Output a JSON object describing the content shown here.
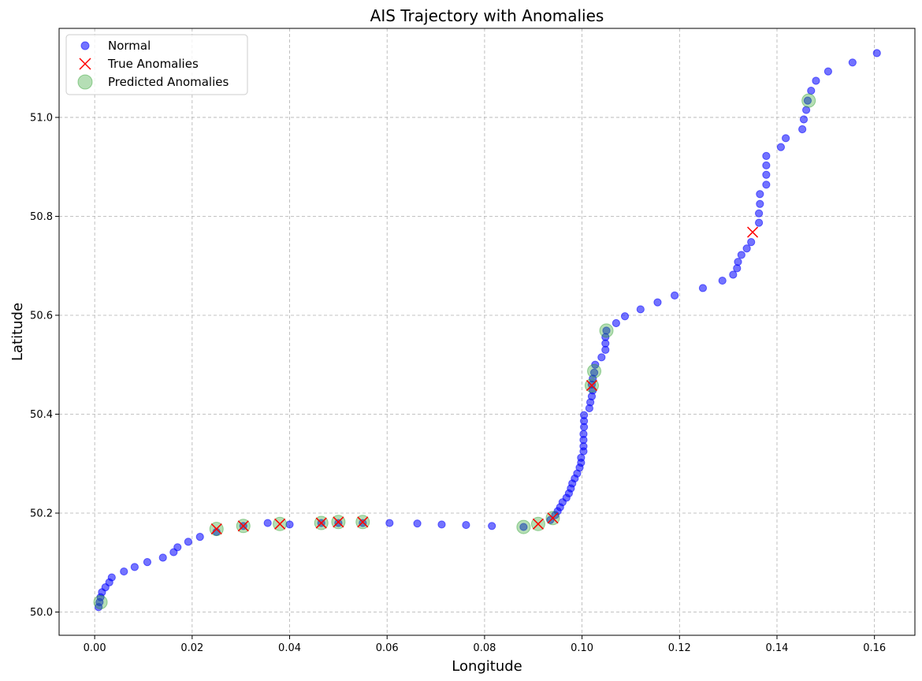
{
  "chart_data": {
    "type": "scatter",
    "title": "AIS Trajectory with Anomalies",
    "xlabel": "Longitude",
    "ylabel": "Latitude",
    "xlim": [
      -0.0073,
      0.1683
    ],
    "ylim": [
      49.953,
      51.18
    ],
    "xticks": [
      "0.00",
      "0.02",
      "0.04",
      "0.06",
      "0.08",
      "0.10",
      "0.12",
      "0.14",
      "0.16"
    ],
    "xtick_values": [
      0,
      0.02,
      0.04,
      0.06,
      0.08,
      0.1,
      0.12,
      0.14,
      0.16
    ],
    "yticks": [
      "50.0",
      "50.2",
      "50.4",
      "50.6",
      "50.8",
      "51.0"
    ],
    "ytick_values": [
      50.0,
      50.2,
      50.4,
      50.6,
      50.8,
      51.0
    ],
    "grid": true,
    "legend_position": "top-left",
    "series": [
      {
        "name": "Normal",
        "marker": "circle",
        "color": "#0000ff",
        "points": [
          [
            0.0008,
            50.01
          ],
          [
            0.001,
            50.02
          ],
          [
            0.0012,
            50.03
          ],
          [
            0.0015,
            50.04
          ],
          [
            0.0022,
            50.05
          ],
          [
            0.003,
            50.06
          ],
          [
            0.0035,
            50.07
          ],
          [
            0.006,
            50.082
          ],
          [
            0.0082,
            50.091
          ],
          [
            0.0108,
            50.101
          ],
          [
            0.014,
            50.11
          ],
          [
            0.0162,
            50.121
          ],
          [
            0.017,
            50.131
          ],
          [
            0.0192,
            50.142
          ],
          [
            0.0216,
            50.152
          ],
          [
            0.025,
            50.162
          ],
          [
            0.0305,
            50.174
          ],
          [
            0.0355,
            50.18
          ],
          [
            0.04,
            50.177
          ],
          [
            0.0465,
            50.18
          ],
          [
            0.05,
            50.18
          ],
          [
            0.055,
            50.18
          ],
          [
            0.0605,
            50.18
          ],
          [
            0.0662,
            50.179
          ],
          [
            0.0712,
            50.177
          ],
          [
            0.0762,
            50.176
          ],
          [
            0.0815,
            50.174
          ],
          [
            0.088,
            50.172
          ],
          [
            0.0935,
            50.186
          ],
          [
            0.0945,
            50.196
          ],
          [
            0.095,
            50.204
          ],
          [
            0.0955,
            50.212
          ],
          [
            0.096,
            50.222
          ],
          [
            0.0968,
            50.231
          ],
          [
            0.0973,
            50.24
          ],
          [
            0.0977,
            50.25
          ],
          [
            0.098,
            50.26
          ],
          [
            0.0985,
            50.27
          ],
          [
            0.099,
            50.28
          ],
          [
            0.0995,
            50.292
          ],
          [
            0.0998,
            50.302
          ],
          [
            0.0998,
            50.312
          ],
          [
            0.1003,
            50.325
          ],
          [
            0.1003,
            50.335
          ],
          [
            0.1003,
            50.348
          ],
          [
            0.1003,
            50.36
          ],
          [
            0.1004,
            50.374
          ],
          [
            0.1004,
            50.386
          ],
          [
            0.1004,
            50.398
          ],
          [
            0.1015,
            50.412
          ],
          [
            0.1017,
            50.424
          ],
          [
            0.102,
            50.436
          ],
          [
            0.1022,
            50.448
          ],
          [
            0.102,
            50.46
          ],
          [
            0.1022,
            50.472
          ],
          [
            0.1025,
            50.484
          ],
          [
            0.1027,
            50.5
          ],
          [
            0.104,
            50.515
          ],
          [
            0.1048,
            50.53
          ],
          [
            0.1048,
            50.543
          ],
          [
            0.1048,
            50.556
          ],
          [
            0.105,
            50.569
          ],
          [
            0.107,
            50.584
          ],
          [
            0.1088,
            50.598
          ],
          [
            0.112,
            50.612
          ],
          [
            0.1155,
            50.626
          ],
          [
            0.119,
            50.64
          ],
          [
            0.1248,
            50.655
          ],
          [
            0.1288,
            50.67
          ],
          [
            0.131,
            50.682
          ],
          [
            0.1318,
            50.695
          ],
          [
            0.132,
            50.708
          ],
          [
            0.1327,
            50.722
          ],
          [
            0.1338,
            50.735
          ],
          [
            0.1347,
            50.748
          ],
          [
            0.1363,
            50.787
          ],
          [
            0.1363,
            50.806
          ],
          [
            0.1365,
            50.825
          ],
          [
            0.1365,
            50.845
          ],
          [
            0.1378,
            50.864
          ],
          [
            0.1378,
            50.884
          ],
          [
            0.1378,
            50.903
          ],
          [
            0.1378,
            50.922
          ],
          [
            0.1408,
            50.94
          ],
          [
            0.1418,
            50.958
          ],
          [
            0.1452,
            50.976
          ],
          [
            0.1455,
            50.996
          ],
          [
            0.146,
            51.015
          ],
          [
            0.1463,
            51.034
          ],
          [
            0.147,
            51.054
          ],
          [
            0.148,
            51.074
          ],
          [
            0.1505,
            51.093
          ],
          [
            0.1555,
            51.111
          ],
          [
            0.1605,
            51.13
          ]
        ]
      },
      {
        "name": "True Anomalies",
        "marker": "x",
        "color": "#ff0000",
        "points": [
          [
            0.025,
            50.168
          ],
          [
            0.0305,
            50.174
          ],
          [
            0.038,
            50.178
          ],
          [
            0.0465,
            50.18
          ],
          [
            0.05,
            50.182
          ],
          [
            0.055,
            50.182
          ],
          [
            0.091,
            50.178
          ],
          [
            0.094,
            50.19
          ],
          [
            0.102,
            50.458
          ],
          [
            0.135,
            50.768
          ]
        ]
      },
      {
        "name": "Predicted Anomalies",
        "marker": "circle-large",
        "color": "#2ca02c",
        "points": [
          [
            0.0012,
            50.02
          ],
          [
            0.025,
            50.168
          ],
          [
            0.0305,
            50.174
          ],
          [
            0.038,
            50.178
          ],
          [
            0.0465,
            50.18
          ],
          [
            0.05,
            50.182
          ],
          [
            0.055,
            50.182
          ],
          [
            0.088,
            50.172
          ],
          [
            0.091,
            50.178
          ],
          [
            0.094,
            50.19
          ],
          [
            0.102,
            50.458
          ],
          [
            0.1025,
            50.487
          ],
          [
            0.105,
            50.569
          ],
          [
            0.1465,
            51.034
          ]
        ]
      }
    ]
  }
}
